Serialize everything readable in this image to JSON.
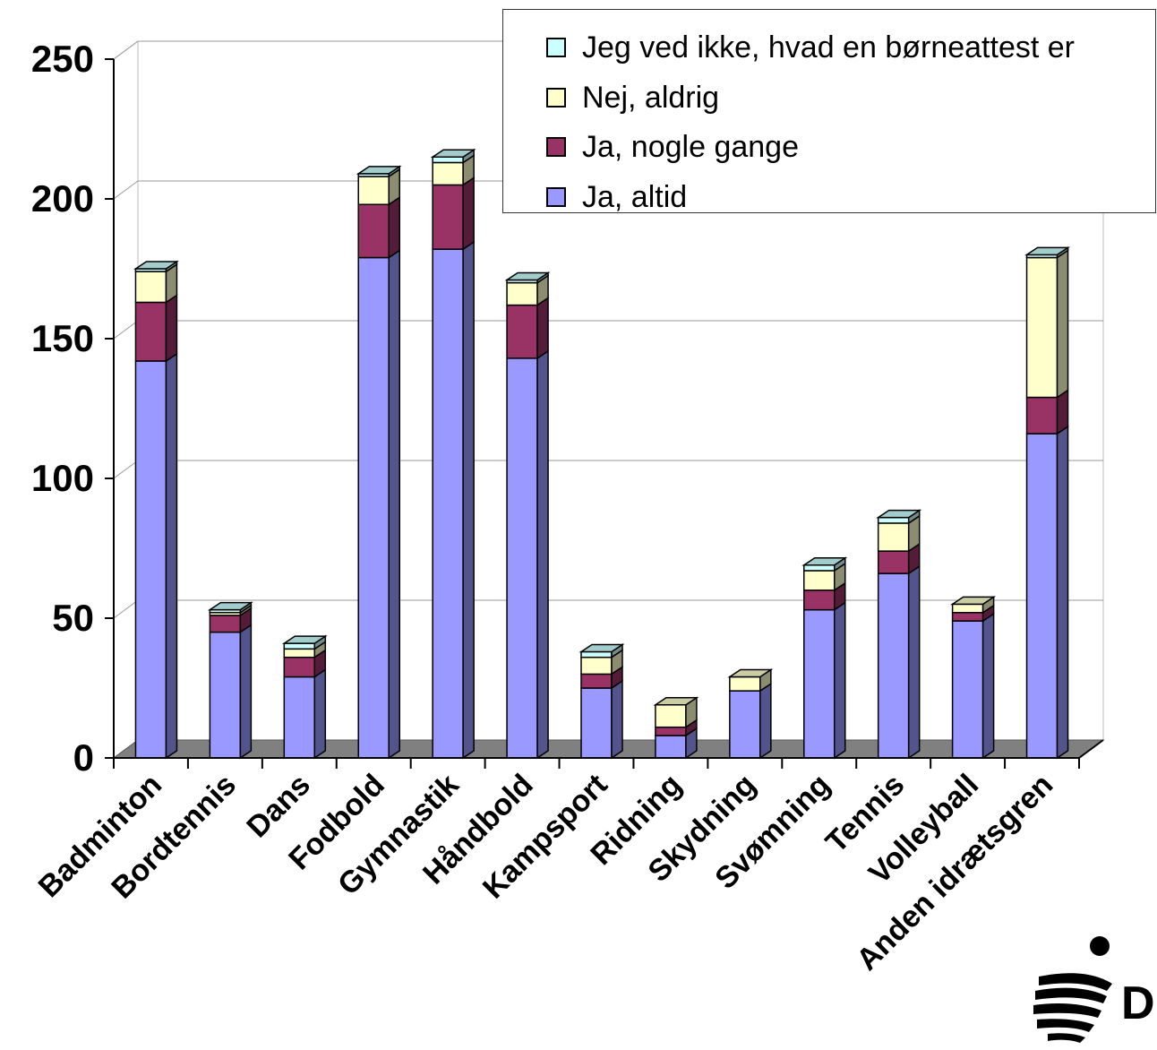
{
  "chart_data": {
    "type": "bar",
    "stacked": true,
    "three_d": true,
    "categories": [
      "Badminton",
      "Bordtennis",
      "Dans",
      "Fodbold",
      "Gymnastik",
      "Håndbold",
      "Kampsport",
      "Ridning",
      "Skydning",
      "Svømning",
      "Tennis",
      "Volleyball",
      "Anden idrætsgren"
    ],
    "series": [
      {
        "name": "Ja, altid",
        "color": "#9999ff",
        "values": [
          142,
          45,
          29,
          179,
          182,
          143,
          25,
          8,
          24,
          53,
          66,
          49,
          116
        ]
      },
      {
        "name": "Ja, nogle gange",
        "color": "#993366",
        "values": [
          21,
          6,
          7,
          19,
          23,
          19,
          5,
          3,
          0,
          7,
          8,
          3,
          13
        ]
      },
      {
        "name": "Nej, aldrig",
        "color": "#ffffcc",
        "values": [
          11,
          1,
          3,
          10,
          8,
          8,
          6,
          8,
          5,
          7,
          10,
          3,
          50
        ]
      },
      {
        "name": "Jeg ved ikke, hvad en børneattest er",
        "color": "#ccffff",
        "values": [
          1,
          1,
          2,
          1,
          2,
          1,
          2,
          0,
          0,
          2,
          2,
          0,
          1
        ]
      }
    ],
    "ylim": [
      0,
      250
    ],
    "yticks": [
      0,
      50,
      100,
      150,
      200,
      250
    ],
    "grid": true,
    "legend_position": "top-right",
    "xlabel": "",
    "ylabel": "",
    "title": ""
  },
  "legend": {
    "items": [
      {
        "label": "Jeg ved ikke, hvad en børneattest er",
        "color": "#ccffff"
      },
      {
        "label": "Nej, aldrig",
        "color": "#ffffcc"
      },
      {
        "label": "Ja, nogle gange",
        "color": "#993366"
      },
      {
        "label": "Ja, altid",
        "color": "#9999ff"
      }
    ]
  },
  "logo": {
    "letter": "D",
    "icon": "dif-athlete-logo-icon"
  }
}
